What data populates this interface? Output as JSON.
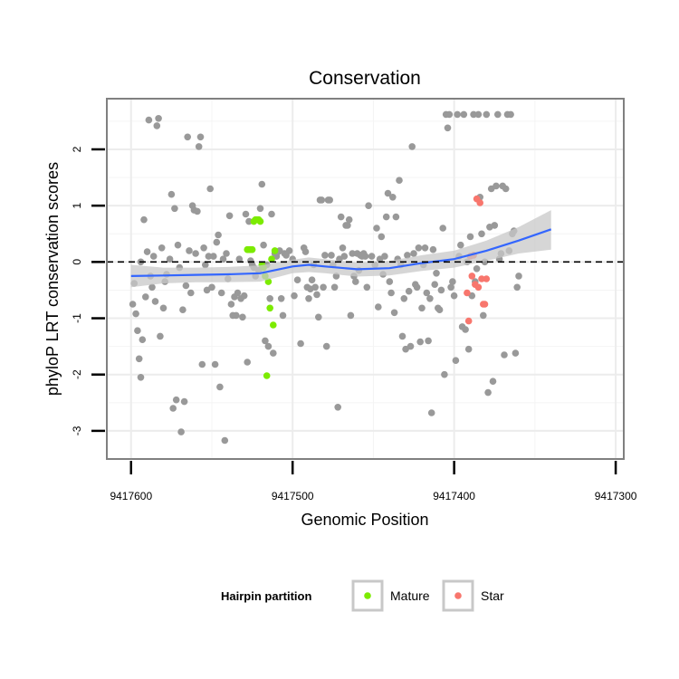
{
  "chart_data": {
    "type": "scatter",
    "title": "Conservation",
    "xlabel": "Genomic Position",
    "ylabel": "phyloP LRT conservation scores",
    "x_reversed": true,
    "xlim": [
      9417615,
      9417295
    ],
    "ylim": [
      -3.5,
      2.9
    ],
    "x_ticks": [
      9417600,
      9417500,
      9417400,
      9417300
    ],
    "x_tick_labels": [
      "9417600",
      "9417500",
      "9417400",
      "9417300"
    ],
    "y_ticks": [
      -3,
      -2,
      -1,
      0,
      1,
      2
    ],
    "y_tick_labels": [
      "-3",
      "-2",
      "-1",
      "0",
      "1",
      "2"
    ],
    "grid": true,
    "reference_line": {
      "y": 0,
      "style": "dashed",
      "color": "#000000"
    },
    "legend": {
      "title": "Hairpin partition",
      "position": "bottom",
      "entries": [
        {
          "label": "Mature",
          "color": "#7CEB00"
        },
        {
          "label": "Star",
          "color": "#F8766D"
        }
      ]
    },
    "colors": {
      "other": "#999999",
      "mature": "#7CEB00",
      "star": "#F8766D",
      "smooth": "#3366FF",
      "ribbon": "#C8C8C8"
    },
    "series": [
      {
        "key": "other",
        "points": [
          [
            9417599,
            -0.75
          ],
          [
            9417598,
            -0.38
          ],
          [
            9417597,
            -0.92
          ],
          [
            9417596,
            -1.22
          ],
          [
            9417595,
            -1.72
          ],
          [
            9417594,
            -2.05
          ],
          [
            9417593,
            -1.38
          ],
          [
            9417594,
            0.0
          ],
          [
            9417592,
            0.75
          ],
          [
            9417591,
            -0.62
          ],
          [
            9417590,
            0.18
          ],
          [
            9417589,
            2.52
          ],
          [
            9417588,
            -0.25
          ],
          [
            9417587,
            -0.45
          ],
          [
            9417586,
            0.1
          ],
          [
            9417585,
            -0.7
          ],
          [
            9417584,
            2.42
          ],
          [
            9417583,
            2.55
          ],
          [
            9417582,
            -1.32
          ],
          [
            9417581,
            0.25
          ],
          [
            9417580,
            -0.82
          ],
          [
            9417579,
            -0.35
          ],
          [
            9417578,
            -0.22
          ],
          [
            9417576,
            0.05
          ],
          [
            9417575,
            1.2
          ],
          [
            9417574,
            -2.6
          ],
          [
            9417573,
            0.95
          ],
          [
            9417572,
            -2.45
          ],
          [
            9417571,
            0.3
          ],
          [
            9417570,
            -0.1
          ],
          [
            9417569,
            -3.02
          ],
          [
            9417568,
            -0.85
          ],
          [
            9417567,
            -2.48
          ],
          [
            9417566,
            -0.42
          ],
          [
            9417565,
            2.22
          ],
          [
            9417564,
            0.2
          ],
          [
            9417563,
            -0.55
          ],
          [
            9417562,
            1.0
          ],
          [
            9417561,
            0.92
          ],
          [
            9417560,
            0.15
          ],
          [
            9417559,
            0.9
          ],
          [
            9417558,
            2.05
          ],
          [
            9417557,
            2.22
          ],
          [
            9417556,
            -1.82
          ],
          [
            9417555,
            0.25
          ],
          [
            9417554,
            -0.05
          ],
          [
            9417553,
            -0.5
          ],
          [
            9417552,
            0.1
          ],
          [
            9417551,
            1.3
          ],
          [
            9417550,
            -0.45
          ],
          [
            9417549,
            0.1
          ],
          [
            9417548,
            -1.82
          ],
          [
            9417547,
            0.35
          ],
          [
            9417546,
            0.48
          ],
          [
            9417545,
            -2.22
          ],
          [
            9417544,
            -0.55
          ],
          [
            9417543,
            0.05
          ],
          [
            9417542,
            -3.17
          ],
          [
            9417541,
            0.15
          ],
          [
            9417540,
            -0.3
          ],
          [
            9417539,
            0.82
          ],
          [
            9417538,
            -0.75
          ],
          [
            9417537,
            -0.95
          ],
          [
            9417536,
            -0.62
          ],
          [
            9417535,
            -0.95
          ],
          [
            9417534,
            -0.55
          ],
          [
            9417533,
            0.05
          ],
          [
            9417532,
            -0.65
          ],
          [
            9417531,
            -0.98
          ],
          [
            9417530,
            -0.6
          ],
          [
            9417529,
            0.85
          ],
          [
            9417528,
            -1.78
          ],
          [
            9417527,
            0.72
          ],
          [
            9417526,
            0.02
          ],
          [
            9417525,
            -0.05
          ],
          [
            9417524,
            -0.1
          ],
          [
            9417523,
            -0.25
          ],
          [
            9417521,
            -0.15
          ],
          [
            9417520,
            0.95
          ],
          [
            9417519,
            1.38
          ],
          [
            9417518,
            0.3
          ],
          [
            9417517,
            -1.4
          ],
          [
            9417516,
            -0.05
          ],
          [
            9417515,
            -1.5
          ],
          [
            9417514,
            -0.65
          ],
          [
            9417513,
            0.85
          ],
          [
            9417512,
            -1.62
          ],
          [
            9417511,
            0.15
          ],
          [
            9417510,
            0.1
          ],
          [
            9417509,
            0.18
          ],
          [
            9417508,
            0.2
          ],
          [
            9417507,
            -0.65
          ],
          [
            9417506,
            -0.95
          ],
          [
            9417505,
            0.15
          ],
          [
            9417504,
            0.12
          ],
          [
            9417502,
            0.2
          ],
          [
            9417500,
            0.05
          ],
          [
            9417499,
            -0.6
          ],
          [
            9417497,
            -0.32
          ],
          [
            9417495,
            -1.45
          ],
          [
            9417493,
            0.25
          ],
          [
            9417492,
            0.18
          ],
          [
            9417491,
            -0.45
          ],
          [
            9417490,
            -0.65
          ],
          [
            9417489,
            -0.48
          ],
          [
            9417488,
            -0.32
          ],
          [
            9417487,
            -0.05
          ],
          [
            9417486,
            -0.45
          ],
          [
            9417485,
            -0.58
          ],
          [
            9417484,
            -0.98
          ],
          [
            9417483,
            1.1
          ],
          [
            9417482,
            1.1
          ],
          [
            9417481,
            -0.45
          ],
          [
            9417480,
            0.12
          ],
          [
            9417479,
            -1.5
          ],
          [
            9417478,
            1.1
          ],
          [
            9417477,
            1.1
          ],
          [
            9417476,
            0.12
          ],
          [
            9417475,
            -0.05
          ],
          [
            9417474,
            -0.45
          ],
          [
            9417473,
            -0.25
          ],
          [
            9417472,
            -2.58
          ],
          [
            9417471,
            0.05
          ],
          [
            9417470,
            0.8
          ],
          [
            9417469,
            0.25
          ],
          [
            9417468,
            0.1
          ],
          [
            9417467,
            0.65
          ],
          [
            9417466,
            0.65
          ],
          [
            9417465,
            0.75
          ],
          [
            9417464,
            -0.95
          ],
          [
            9417463,
            0.15
          ],
          [
            9417462,
            -0.25
          ],
          [
            9417461,
            -0.35
          ],
          [
            9417460,
            0.15
          ],
          [
            9417459,
            -0.15
          ],
          [
            9417458,
            0.12
          ],
          [
            9417457,
            0.1
          ],
          [
            9417456,
            0.15
          ],
          [
            9417455,
            0.1
          ],
          [
            9417454,
            -0.45
          ],
          [
            9417453,
            1.0
          ],
          [
            9417451,
            0.1
          ],
          [
            9417449,
            -0.05
          ],
          [
            9417448,
            0.6
          ],
          [
            9417447,
            -0.8
          ],
          [
            9417446,
            0.05
          ],
          [
            9417445,
            0.45
          ],
          [
            9417444,
            -0.22
          ],
          [
            9417443,
            0.1
          ],
          [
            9417442,
            0.8
          ],
          [
            9417441,
            1.22
          ],
          [
            9417440,
            -0.35
          ],
          [
            9417439,
            -0.55
          ],
          [
            9417438,
            1.15
          ],
          [
            9417437,
            -0.9
          ],
          [
            9417436,
            0.8
          ],
          [
            9417435,
            0.05
          ],
          [
            9417434,
            1.45
          ],
          [
            9417433,
            -0.05
          ],
          [
            9417432,
            -1.32
          ],
          [
            9417431,
            -0.65
          ],
          [
            9417430,
            -1.55
          ],
          [
            9417429,
            0.12
          ],
          [
            9417428,
            -0.52
          ],
          [
            9417427,
            -1.5
          ],
          [
            9417426,
            2.05
          ],
          [
            9417425,
            0.15
          ],
          [
            9417424,
            -0.4
          ],
          [
            9417423,
            -0.45
          ],
          [
            9417422,
            0.25
          ],
          [
            9417421,
            -1.42
          ],
          [
            9417420,
            -0.82
          ],
          [
            9417419,
            -0.05
          ],
          [
            9417418,
            0.25
          ],
          [
            9417417,
            -0.55
          ],
          [
            9417416,
            -1.4
          ],
          [
            9417415,
            -0.65
          ],
          [
            9417414,
            -2.68
          ],
          [
            9417413,
            0.22
          ],
          [
            9417412,
            -0.4
          ],
          [
            9417411,
            -0.2
          ],
          [
            9417410,
            -0.82
          ],
          [
            9417409,
            -0.85
          ],
          [
            9417408,
            -0.5
          ],
          [
            9417407,
            0.6
          ],
          [
            9417406,
            -2.0
          ],
          [
            9417405,
            2.62
          ],
          [
            9417404,
            2.38
          ],
          [
            9417403,
            2.62
          ],
          [
            9417402,
            -0.45
          ],
          [
            9417401,
            -0.35
          ],
          [
            9417400,
            -0.6
          ],
          [
            9417399,
            -1.75
          ],
          [
            9417398,
            2.62
          ],
          [
            9417397,
            0.1
          ],
          [
            9417396,
            0.3
          ],
          [
            9417395,
            -1.15
          ],
          [
            9417394,
            2.62
          ],
          [
            9417393,
            -1.2
          ],
          [
            9417392,
            0.0
          ],
          [
            9417391,
            -1.55
          ],
          [
            9417390,
            0.45
          ],
          [
            9417389,
            -0.6
          ],
          [
            9417388,
            2.62
          ],
          [
            9417387,
            -0.35
          ],
          [
            9417386,
            -0.12
          ],
          [
            9417385,
            2.62
          ],
          [
            9417384,
            1.15
          ],
          [
            9417383,
            0.5
          ],
          [
            9417382,
            -0.95
          ],
          [
            9417381,
            0.0
          ],
          [
            9417380,
            2.62
          ],
          [
            9417379,
            -2.32
          ],
          [
            9417378,
            0.62
          ],
          [
            9417377,
            1.3
          ],
          [
            9417376,
            -2.12
          ],
          [
            9417375,
            0.65
          ],
          [
            9417374,
            1.35
          ],
          [
            9417373,
            2.62
          ],
          [
            9417372,
            0.05
          ],
          [
            9417371,
            0.15
          ],
          [
            9417370,
            1.35
          ],
          [
            9417369,
            -1.65
          ],
          [
            9417368,
            1.3
          ],
          [
            9417367,
            2.62
          ],
          [
            9417366,
            0.2
          ],
          [
            9417365,
            2.62
          ],
          [
            9417364,
            0.5
          ],
          [
            9417363,
            0.55
          ],
          [
            9417362,
            -1.62
          ],
          [
            9417361,
            -0.45
          ],
          [
            9417360,
            -0.25
          ]
        ]
      },
      {
        "key": "mature",
        "name": "Mature",
        "points": [
          [
            9417528,
            0.22
          ],
          [
            9417527,
            0.22
          ],
          [
            9417526,
            0.22
          ],
          [
            9417525,
            0.22
          ],
          [
            9417524,
            0.72
          ],
          [
            9417523,
            0.75
          ],
          [
            9417522,
            0.75
          ],
          [
            9417521,
            0.75
          ],
          [
            9417520,
            0.72
          ],
          [
            9417519,
            -0.05
          ],
          [
            9417518,
            -0.1
          ],
          [
            9417517,
            -0.25
          ],
          [
            9417516,
            -2.02
          ],
          [
            9417515,
            -0.35
          ],
          [
            9417514,
            -0.82
          ],
          [
            9417513,
            0.05
          ],
          [
            9417512,
            -1.12
          ],
          [
            9417511,
            0.2
          ]
        ]
      },
      {
        "key": "star",
        "name": "Star",
        "points": [
          [
            9417392,
            -0.55
          ],
          [
            9417391,
            -1.05
          ],
          [
            9417390,
            0.1
          ],
          [
            9417389,
            -0.25
          ],
          [
            9417388,
            0.12
          ],
          [
            9417387,
            -0.4
          ],
          [
            9417386,
            1.12
          ],
          [
            9417385,
            -0.45
          ],
          [
            9417384,
            1.05
          ],
          [
            9417383,
            -0.3
          ],
          [
            9417382,
            -0.75
          ],
          [
            9417381,
            -0.75
          ],
          [
            9417380,
            -0.3
          ]
        ]
      }
    ],
    "smooth": [
      [
        9417600,
        -0.25,
        -0.45,
        -0.05
      ],
      [
        9417580,
        -0.24,
        -0.38,
        -0.1
      ],
      [
        9417560,
        -0.23,
        -0.36,
        -0.1
      ],
      [
        9417540,
        -0.22,
        -0.36,
        -0.09
      ],
      [
        9417520,
        -0.2,
        -0.35,
        -0.06
      ],
      [
        9417500,
        -0.08,
        -0.2,
        0.04
      ],
      [
        9417490,
        -0.05,
        -0.18,
        0.08
      ],
      [
        9417480,
        -0.08,
        -0.2,
        0.05
      ],
      [
        9417460,
        -0.13,
        -0.26,
        -0.01
      ],
      [
        9417440,
        -0.11,
        -0.24,
        0.02
      ],
      [
        9417420,
        -0.02,
        -0.16,
        0.12
      ],
      [
        9417400,
        0.05,
        -0.1,
        0.2
      ],
      [
        9417380,
        0.2,
        0.02,
        0.38
      ],
      [
        9417360,
        0.38,
        0.15,
        0.62
      ],
      [
        9417340,
        0.58,
        0.22,
        0.92
      ]
    ]
  }
}
